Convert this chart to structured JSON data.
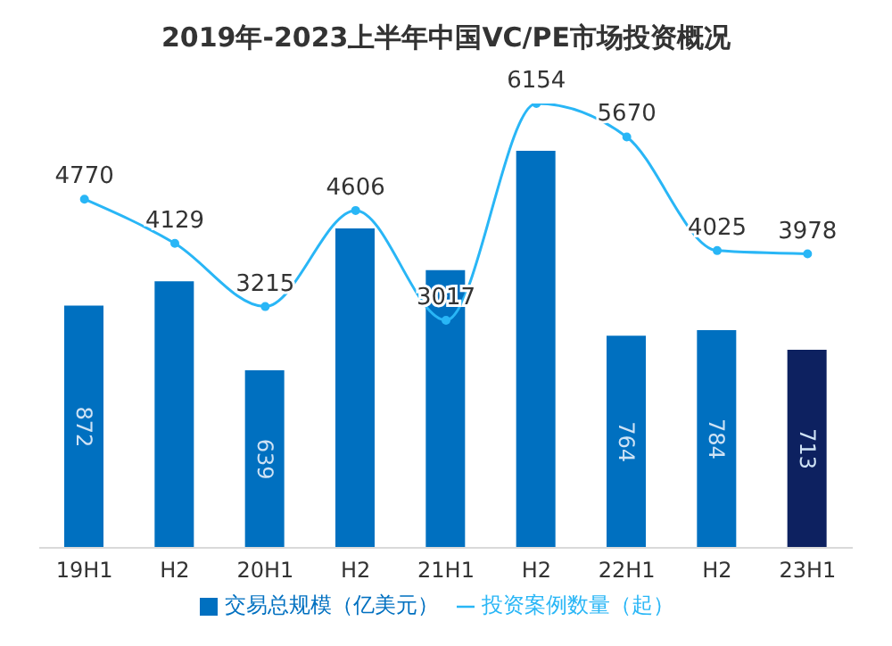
{
  "chart_data": {
    "type": "bar",
    "title": "2019年-2023上半年中国VC/PE市场投资概况",
    "categories": [
      "19H1",
      "H2",
      "20H1",
      "H2",
      "21H1",
      "H2",
      "22H1",
      "H2",
      "23H1"
    ],
    "series": [
      {
        "name": "交易总规模（亿美元）",
        "color": "#0070c0",
        "colors": [
          "#0070c0",
          "#0070c0",
          "#0070c0",
          "#0070c0",
          "#0070c0",
          "#0070c0",
          "#0070c0",
          "#0070c0",
          "#0d2160"
        ],
        "values": [
          872,
          960,
          639,
          1150,
          1000,
          1430,
          764,
          784,
          713
        ],
        "value_labels": [
          "872",
          null,
          "639",
          null,
          null,
          null,
          "764",
          "784",
          "713"
        ]
      },
      {
        "name": "投资案例数量（起）",
        "type": "line",
        "axis": "y2",
        "color": "#29b6f6",
        "values": [
          4770,
          4129,
          3215,
          4606,
          3017,
          6154,
          5670,
          4025,
          3978
        ],
        "value_labels": [
          "4770",
          "4129",
          "3215",
          "4606",
          "3017",
          "6154",
          "5670",
          "4025",
          "3978"
        ]
      }
    ],
    "legend": "bottom",
    "marker": "circle",
    "grid": false
  }
}
